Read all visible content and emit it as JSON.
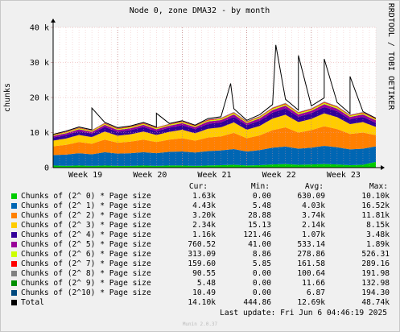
{
  "chart_data": {
    "type": "area",
    "title": "Node 0, zone DMA32 - by month",
    "ylabel": "chunks",
    "ylim": [
      0,
      40000
    ],
    "y_ticks": [
      0,
      10000,
      20000,
      30000,
      40000
    ],
    "y_tick_labels": [
      "0",
      "10 k",
      "20 k",
      "30 k",
      "40 k"
    ],
    "x_ticks": [
      "Week 19",
      "Week 20",
      "Week 21",
      "Week 22",
      "Week 23"
    ],
    "x": [
      0,
      0.04,
      0.08,
      0.12,
      0.16,
      0.2,
      0.24,
      0.28,
      0.32,
      0.36,
      0.4,
      0.44,
      0.48,
      0.52,
      0.56,
      0.6,
      0.64,
      0.68,
      0.72,
      0.76,
      0.8,
      0.84,
      0.88,
      0.92,
      0.96,
      1.0
    ],
    "grid": true,
    "stacked": true,
    "side_text": "RRDTOOL / TOBI OETIKER",
    "series": [
      {
        "name": "Chunks of (2^ 0) * Page size",
        "color": "#00cc00",
        "values": [
          0.6,
          0.5,
          0.6,
          0.5,
          0.6,
          0.5,
          0.5,
          0.6,
          0.5,
          0.6,
          0.6,
          0.5,
          0.6,
          0.7,
          0.8,
          0.6,
          0.7,
          0.9,
          1.0,
          0.8,
          0.9,
          1.0,
          0.9,
          0.7,
          0.8,
          1.63
        ]
      },
      {
        "name": "Chunks of (2^ 1) * Page size",
        "color": "#0066b3",
        "values": [
          3.0,
          3.2,
          3.5,
          3.3,
          3.8,
          3.5,
          3.6,
          3.8,
          3.6,
          3.9,
          4.0,
          3.8,
          4.1,
          4.2,
          4.5,
          4.0,
          4.3,
          4.8,
          5.0,
          4.6,
          4.8,
          5.2,
          4.9,
          4.5,
          4.6,
          4.43
        ]
      },
      {
        "name": "Chunks of (2^ 2) * Page size",
        "color": "#ff8000",
        "values": [
          2.5,
          2.8,
          3.2,
          3.0,
          3.6,
          3.1,
          3.3,
          3.6,
          3.2,
          3.5,
          3.8,
          3.4,
          3.9,
          4.0,
          4.6,
          3.8,
          4.2,
          5.0,
          5.5,
          4.6,
          5.0,
          5.6,
          5.2,
          4.4,
          4.6,
          3.2
        ]
      },
      {
        "name": "Chunks of (2^ 3) * Page size",
        "color": "#ffcc00",
        "values": [
          1.6,
          1.8,
          2.0,
          1.9,
          2.3,
          2.0,
          2.1,
          2.3,
          2.0,
          2.2,
          2.4,
          2.1,
          2.5,
          2.6,
          3.0,
          2.4,
          2.7,
          3.3,
          3.6,
          3.0,
          3.2,
          3.7,
          3.4,
          2.8,
          3.0,
          2.34
        ]
      },
      {
        "name": "Chunks of (2^ 4) * Page size",
        "color": "#330099",
        "values": [
          0.9,
          1.0,
          1.1,
          1.0,
          1.3,
          1.1,
          1.2,
          1.3,
          1.1,
          1.2,
          1.3,
          1.2,
          1.4,
          1.4,
          1.6,
          1.3,
          1.5,
          1.7,
          1.8,
          1.5,
          1.6,
          1.8,
          1.7,
          1.4,
          1.5,
          1.16
        ]
      },
      {
        "name": "Chunks of (2^ 5) * Page size",
        "color": "#990099",
        "values": [
          0.45,
          0.5,
          0.55,
          0.5,
          0.6,
          0.55,
          0.55,
          0.6,
          0.55,
          0.55,
          0.6,
          0.55,
          0.65,
          0.65,
          0.7,
          0.6,
          0.65,
          0.75,
          0.8,
          0.7,
          0.7,
          0.8,
          0.75,
          0.65,
          0.7,
          0.76
        ]
      },
      {
        "name": "Chunks of (2^ 6) * Page size",
        "color": "#ccff00",
        "values": [
          0.22,
          0.25,
          0.28,
          0.26,
          0.3,
          0.27,
          0.28,
          0.3,
          0.27,
          0.28,
          0.3,
          0.28,
          0.31,
          0.32,
          0.34,
          0.3,
          0.32,
          0.36,
          0.38,
          0.34,
          0.35,
          0.38,
          0.36,
          0.32,
          0.33,
          0.31
        ]
      },
      {
        "name": "Chunks of (2^ 7) * Page size",
        "color": "#ff0000",
        "values": [
          0.13,
          0.14,
          0.15,
          0.15,
          0.17,
          0.15,
          0.16,
          0.17,
          0.15,
          0.16,
          0.17,
          0.16,
          0.18,
          0.18,
          0.19,
          0.17,
          0.18,
          0.2,
          0.21,
          0.19,
          0.19,
          0.21,
          0.2,
          0.18,
          0.18,
          0.16
        ]
      },
      {
        "name": "Chunks of (2^ 8) * Page size",
        "color": "#808080",
        "values": [
          0.08,
          0.09,
          0.1,
          0.09,
          0.11,
          0.1,
          0.1,
          0.11,
          0.1,
          0.1,
          0.11,
          0.1,
          0.12,
          0.12,
          0.13,
          0.11,
          0.12,
          0.13,
          0.14,
          0.12,
          0.13,
          0.14,
          0.13,
          0.11,
          0.12,
          0.09
        ]
      },
      {
        "name": "Chunks of (2^ 9) * Page size",
        "color": "#008f00",
        "values": [
          0.01,
          0.01,
          0.01,
          0.01,
          0.01,
          0.01,
          0.01,
          0.01,
          0.01,
          0.01,
          0.01,
          0.01,
          0.01,
          0.01,
          0.01,
          0.01,
          0.01,
          0.01,
          0.01,
          0.01,
          0.01,
          0.01,
          0.01,
          0.01,
          0.01,
          0.005
        ]
      },
      {
        "name": "Chunks of (2^10) * Page size",
        "color": "#00487d",
        "values": [
          0.01,
          0.01,
          0.01,
          0.01,
          0.01,
          0.01,
          0.01,
          0.01,
          0.01,
          0.01,
          0.01,
          0.01,
          0.01,
          0.01,
          0.01,
          0.01,
          0.01,
          0.01,
          0.01,
          0.01,
          0.01,
          0.01,
          0.01,
          0.01,
          0.01,
          0.01
        ]
      }
    ],
    "total": {
      "name": "Total",
      "color": "#000000",
      "values": [
        9.5,
        10.4,
        11.6,
        10.8,
        12.9,
        11.4,
        11.9,
        12.9,
        11.6,
        12.6,
        13.4,
        12.1,
        14.0,
        14.5,
        16.8,
        13.5,
        15.1,
        18.0,
        19.5,
        16.4,
        17.6,
        19.9,
        18.6,
        15.4,
        16.0,
        14.1
      ],
      "peaks": [
        [
          0.12,
          17.0
        ],
        [
          0.32,
          15.5
        ],
        [
          0.55,
          24.0
        ],
        [
          0.69,
          35.0
        ],
        [
          0.76,
          32.0
        ],
        [
          0.84,
          31.0
        ],
        [
          0.92,
          26.0
        ]
      ]
    }
  },
  "legend": {
    "headers": {
      "cur": "Cur:",
      "min": "Min:",
      "avg": "Avg:",
      "max": "Max:"
    },
    "rows": [
      {
        "label": "Chunks of (2^ 0) * Page size",
        "color": "#00cc00",
        "cur": "1.63k",
        "min": "0.00",
        "avg": "630.09",
        "max": "10.10k"
      },
      {
        "label": "Chunks of (2^ 1) * Page size",
        "color": "#0066b3",
        "cur": "4.43k",
        "min": "5.48",
        "avg": "4.03k",
        "max": "16.52k"
      },
      {
        "label": "Chunks of (2^ 2) * Page size",
        "color": "#ff8000",
        "cur": "3.20k",
        "min": "28.88",
        "avg": "3.74k",
        "max": "11.81k"
      },
      {
        "label": "Chunks of (2^ 3) * Page size",
        "color": "#ffcc00",
        "cur": "2.34k",
        "min": "15.13",
        "avg": "2.14k",
        "max": "8.15k"
      },
      {
        "label": "Chunks of (2^ 4) * Page size",
        "color": "#330099",
        "cur": "1.16k",
        "min": "121.46",
        "avg": "1.07k",
        "max": "3.48k"
      },
      {
        "label": "Chunks of (2^ 5) * Page size",
        "color": "#990099",
        "cur": "760.52",
        "min": "41.00",
        "avg": "533.14",
        "max": "1.89k"
      },
      {
        "label": "Chunks of (2^ 6) * Page size",
        "color": "#ccff00",
        "cur": "313.09",
        "min": "8.86",
        "avg": "278.86",
        "max": "526.31"
      },
      {
        "label": "Chunks of (2^ 7) * Page size",
        "color": "#ff0000",
        "cur": "159.60",
        "min": "5.85",
        "avg": "161.58",
        "max": "289.16"
      },
      {
        "label": "Chunks of (2^ 8) * Page size",
        "color": "#808080",
        "cur": "90.55",
        "min": "0.00",
        "avg": "100.64",
        "max": "191.98"
      },
      {
        "label": "Chunks of (2^ 9) * Page size",
        "color": "#008f00",
        "cur": "5.48",
        "min": "0.00",
        "avg": "11.66",
        "max": "132.98"
      },
      {
        "label": "Chunks of (2^10) * Page size",
        "color": "#00487d",
        "cur": "10.49",
        "min": "0.00",
        "avg": "6.87",
        "max": "194.30"
      },
      {
        "label": "Total",
        "color": "#000000",
        "cur": "14.10k",
        "min": "444.86",
        "avg": "12.69k",
        "max": "48.74k"
      }
    ]
  },
  "last_update": "Last update: Fri Jun  6 04:46:19 2025",
  "footer": "Munin 2.0.37"
}
